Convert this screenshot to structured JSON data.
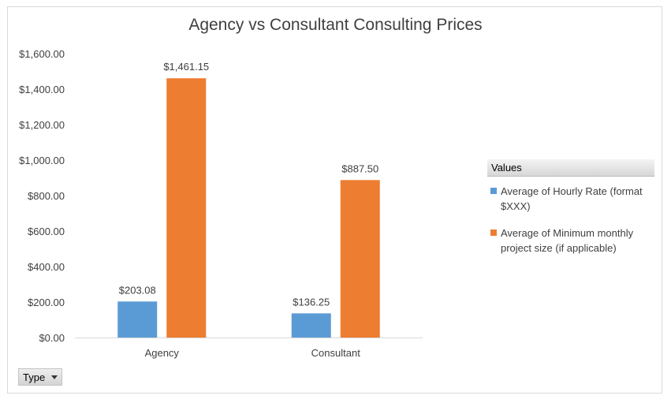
{
  "chart_data": {
    "type": "bar",
    "title": "Agency vs Consultant Consulting Prices",
    "categories": [
      "Agency",
      "Consultant"
    ],
    "series": [
      {
        "name": "Average of Hourly Rate (format $XXX)",
        "values": [
          203.08,
          136.25
        ],
        "color": "#5b9bd5"
      },
      {
        "name": "Average of Minimum monthly project size (if applicable)",
        "values": [
          1461.15,
          887.5
        ],
        "color": "#ed7d31"
      }
    ],
    "data_labels": [
      [
        "$203.08",
        "$136.25"
      ],
      [
        "$1,461.15",
        "$887.50"
      ]
    ],
    "y_ticks": [
      0,
      200,
      400,
      600,
      800,
      1000,
      1200,
      1400,
      1600
    ],
    "y_tick_labels": [
      "$0.00",
      "$200.00",
      "$400.00",
      "$600.00",
      "$800.00",
      "$1,000.00",
      "$1,200.00",
      "$1,400.00",
      "$1,600.00"
    ],
    "ylim": [
      0,
      1600
    ],
    "grid": false,
    "legend_title": "Values",
    "legend_position": "right",
    "xlabel": "",
    "ylabel": ""
  },
  "filter_button": {
    "label": "Type",
    "icon": "dropdown-arrow-icon"
  }
}
